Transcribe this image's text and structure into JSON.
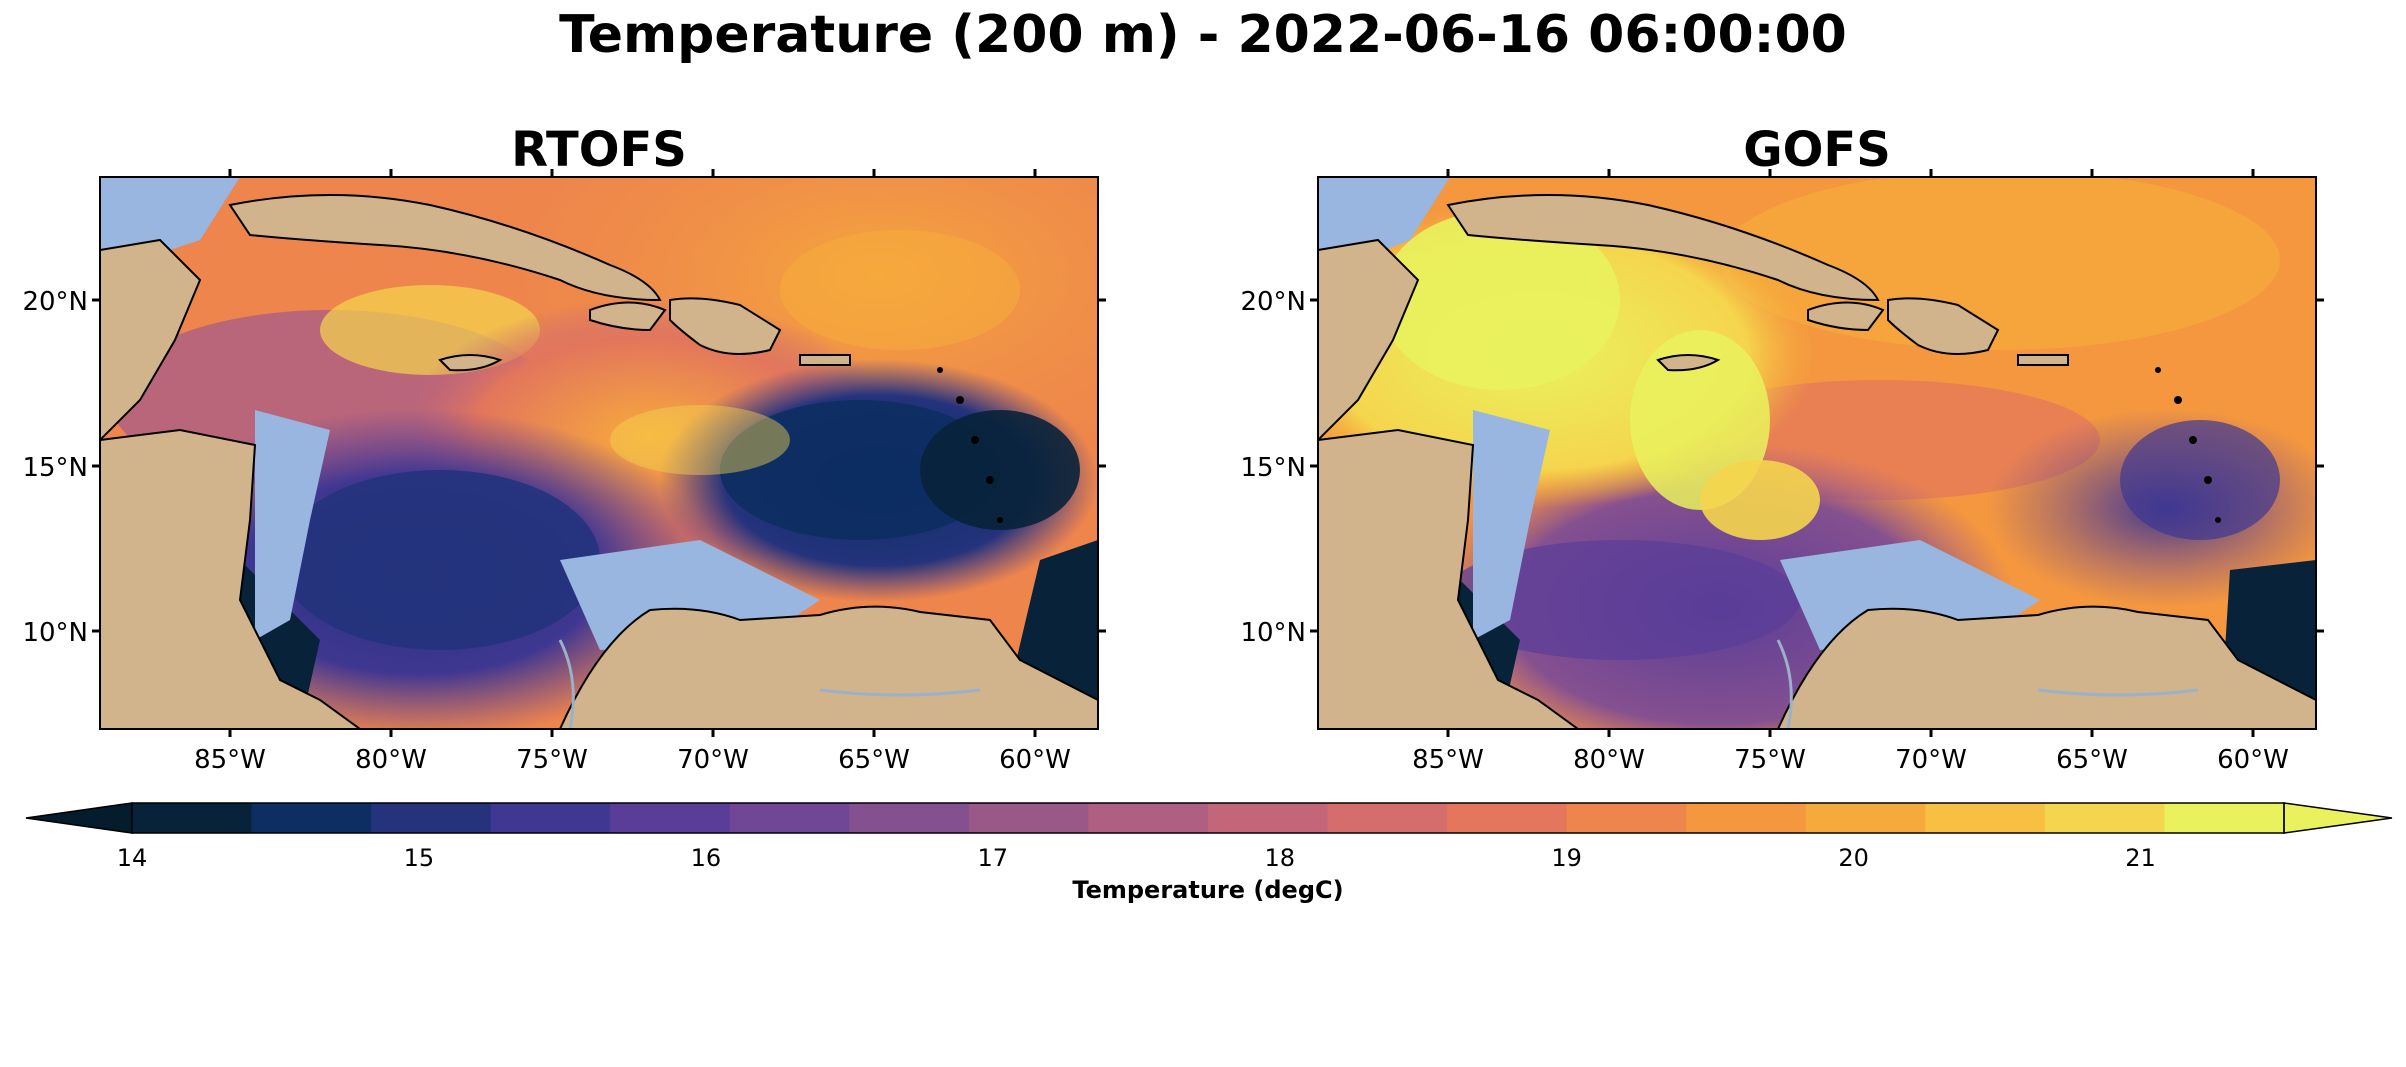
{
  "figure": {
    "title": "Temperature (200 m) - 2022-06-16 06:00:00"
  },
  "panels": [
    {
      "title": "RTOFS",
      "lat_labels": [
        "20°N",
        "15°N",
        "10°N"
      ],
      "lon_labels": [
        "85°W",
        "80°W",
        "75°W",
        "70°W",
        "65°W",
        "60°W"
      ]
    },
    {
      "title": "GOFS",
      "lat_labels": [
        "20°N",
        "15°N",
        "10°N"
      ],
      "lon_labels": [
        "85°W",
        "80°W",
        "75°W",
        "70°W",
        "65°W",
        "60°W"
      ]
    }
  ],
  "map_extent": {
    "lon": [
      -89.5,
      -58.5
    ],
    "lat": [
      7,
      24
    ]
  },
  "colorbar": {
    "label": "Temperature (degC)",
    "tick_labels": [
      "14",
      "15",
      "16",
      "17",
      "18",
      "19",
      "20",
      "21"
    ],
    "range": [
      14,
      21.5
    ],
    "extend": "both",
    "colors": [
      "#08223a",
      "#0c2e62",
      "#24337c",
      "#3f3791",
      "#5a3d99",
      "#6f4796",
      "#85508f",
      "#9a5888",
      "#af5f82",
      "#c4667a",
      "#d56d6c",
      "#e3765c",
      "#ee854c",
      "#f4973f",
      "#f7aa3c",
      "#f8c043",
      "#f5d54d",
      "#e9f25d"
    ],
    "under_color": "#041c2c",
    "over_color": "#e9f25d"
  },
  "colors": {
    "land": "#d2b48c",
    "shelf_water": "#98b6e0",
    "coastline": "#000000",
    "rivers": "#9ab1c9"
  }
}
